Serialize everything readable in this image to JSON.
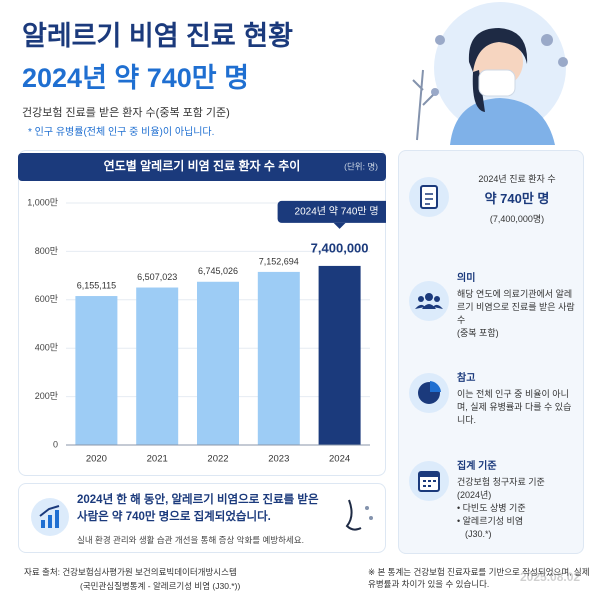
{
  "header": {
    "title": "알레르기 비염 진료 현황",
    "headline": "2024년 약 740만 명",
    "subtitle": "건강보험 진료를 받은 환자 수(중복 포함 기준)",
    "note": "* 인구 유병률(전체 인구 중 비율)이 아닙니다."
  },
  "chart_data": {
    "type": "bar",
    "title": "연도별 알레르기 비염 진료 환자 수 추이",
    "unit": "(단위: 명)",
    "categories": [
      "2020",
      "2021",
      "2022",
      "2023",
      "2024"
    ],
    "values": [
      6155115,
      6507023,
      6745026,
      7152694,
      7400000
    ],
    "value_labels": [
      "6,155,115",
      "6,507,023",
      "6,745,026",
      "7,152,694",
      "7,400,000"
    ],
    "colors": [
      "#9dccf5",
      "#9dccf5",
      "#9dccf5",
      "#9dccf5",
      "#1b3a7c"
    ],
    "ylim": [
      0,
      10000000
    ],
    "yticks": [
      0,
      {
        "value": 2000000,
        "label": "200만"
      },
      {
        "value": 4000000,
        "label": "400만"
      },
      {
        "value": 6000000,
        "label": "600만"
      },
      {
        "value": 8000000,
        "label": "800만"
      },
      {
        "value": 10000000,
        "label": "1,000만"
      }
    ],
    "grid": true,
    "annotation": "2024년 약 740만 명"
  },
  "summary": {
    "text": "2024년 한 해 동안, 알레르기 비염으로 진료를 받은 사람은 약 740만 명으로 집계되었습니다.",
    "tip": "실내 환경 관리와 생활 습관 개선을 통해 증상 악화를 예방하세요."
  },
  "sidebar": [
    {
      "heading": "2024년 진료 환자 수",
      "lines": [
        "약 740만 명",
        "(7,400,000명)"
      ]
    },
    {
      "heading": "의미",
      "lines": [
        "해당 연도에 의료기관에서 알레르기 비염으로 진료를 받은 사람 수",
        "(중복 포함)"
      ]
    },
    {
      "heading": "참고",
      "lines": [
        "이는 전체 인구 중 비율이 아니며, 실제 유병률과 다를 수 있습니다."
      ]
    },
    {
      "heading": "집계 기준",
      "lines": [
        "건강보험 청구자료 기준",
        "(2024년)",
        "• 다빈도 상병 기준",
        "• 알레르기성 비염",
        "(J30.*)"
      ]
    }
  ],
  "footer": {
    "source": "자료 출처: 건강보험심사평가원 보건의료빅데이터개방시스템",
    "source_detail": "(국민관심질병통계 - 알레르기성 비염 (J30.*))",
    "disclaimer": "※ 본 통계는 건강보험 진료자료를 기반으로 작성되었으며, 실제 유병률과 차이가 있을 수 있습니다.",
    "watermark": "2025.08.02"
  }
}
